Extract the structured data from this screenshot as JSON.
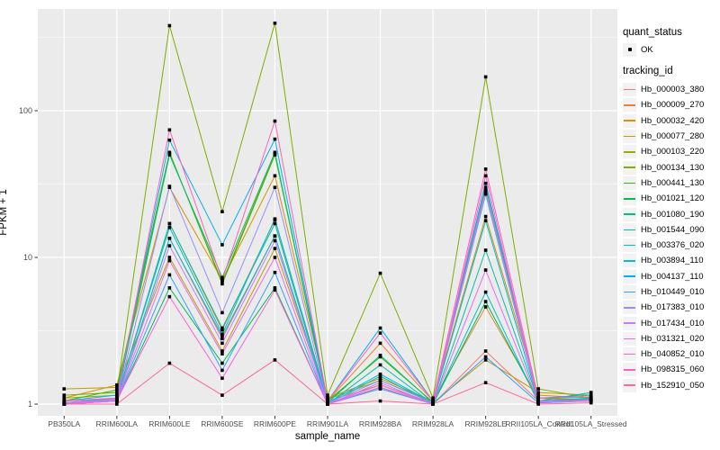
{
  "figure": {
    "background": "#FFFFFF",
    "panel_background": "#EBEBEB",
    "grid_color": "#FFFFFF",
    "axis_text_color": "#4D4D4D",
    "tick_mark_color": "#333333",
    "point_color": "#000000"
  },
  "axes": {
    "x_title": "sample_name",
    "y_title": "FPKM + 1",
    "y_tick_labels": [
      "1",
      "10",
      "100"
    ]
  },
  "legend": {
    "quant_title": "quant_status",
    "quant_items": [
      {
        "label": "OK"
      }
    ],
    "tracking_title": "tracking_id"
  },
  "chart_data": {
    "type": "line",
    "title": "",
    "xlabel": "sample_name",
    "ylabel": "FPKM + 1",
    "y_scale": "log10",
    "y_ticks": [
      1,
      10,
      100
    ],
    "y_minor_ticks": [
      3.162,
      31.62,
      316.2
    ],
    "ylim_log10": [
      -0.08,
      2.69
    ],
    "grid": true,
    "legend_position": "right",
    "point_shape": "filled-square",
    "categories": [
      "PB350LA",
      "RRIM600LA",
      "RRIM600LE",
      "RRIM600SE",
      "RRIM600PE",
      "RRIM901LA",
      "RRIM928BA",
      "RRIM928LA",
      "RRIM928LE",
      "RRII105LA_Control",
      "RRII105LA_Stressed"
    ],
    "series": [
      {
        "name": "Hb_000003_380",
        "color": "#F8766D",
        "values": [
          1.0,
          1.05,
          13.5,
          2.8,
          14.0,
          1.0,
          1.3,
          1.0,
          2.3,
          1.05,
          1.08
        ]
      },
      {
        "name": "Hb_000009_270",
        "color": "#EA8331",
        "values": [
          1.05,
          1.1,
          17.0,
          3.2,
          18.0,
          1.05,
          2.6,
          1.05,
          4.6,
          1.1,
          1.05
        ]
      },
      {
        "name": "Hb_000032_420",
        "color": "#D89000",
        "values": [
          1.1,
          1.35,
          30.0,
          7.0,
          36.0,
          1.1,
          1.5,
          1.05,
          19.0,
          1.15,
          1.1
        ]
      },
      {
        "name": "Hb_000077_280",
        "color": "#C09B00",
        "values": [
          1.27,
          1.3,
          10.0,
          2.3,
          11.5,
          1.05,
          1.35,
          1.02,
          2.0,
          1.2,
          1.15
        ]
      },
      {
        "name": "Hb_000103_220",
        "color": "#A3A500",
        "values": [
          1.1,
          1.15,
          51.0,
          6.8,
          51.0,
          1.08,
          1.45,
          1.04,
          28.0,
          1.1,
          1.08
        ]
      },
      {
        "name": "Hb_000134_130",
        "color": "#7CAE00",
        "values": [
          1.15,
          1.2,
          380.0,
          20.5,
          395.0,
          1.15,
          7.8,
          1.1,
          170.0,
          1.27,
          1.1
        ]
      },
      {
        "name": "Hb_000441_130",
        "color": "#39B600",
        "values": [
          1.05,
          1.25,
          52.0,
          6.6,
          50.0,
          1.05,
          2.1,
          1.03,
          30.0,
          1.1,
          1.12
        ]
      },
      {
        "name": "Hb_001021_120",
        "color": "#00BB4E",
        "values": [
          1.0,
          1.05,
          6.2,
          1.9,
          6.2,
          1.0,
          1.3,
          1.0,
          5.0,
          1.05,
          1.05
        ]
      },
      {
        "name": "Hb_001080_190",
        "color": "#00BF7D",
        "values": [
          1.02,
          1.1,
          50.0,
          7.3,
          52.0,
          1.02,
          2.15,
          1.02,
          27.0,
          1.05,
          1.2
        ]
      },
      {
        "name": "Hb_001544_090",
        "color": "#00C1A3",
        "values": [
          1.0,
          1.08,
          17.0,
          3.3,
          17.0,
          1.0,
          1.85,
          1.0,
          11.2,
          1.05,
          1.08
        ]
      },
      {
        "name": "Hb_003376_020",
        "color": "#00BFC4",
        "values": [
          1.0,
          1.05,
          13.5,
          2.9,
          14.0,
          1.0,
          1.55,
          1.0,
          5.8,
          1.02,
          1.05
        ]
      },
      {
        "name": "Hb_003894_110",
        "color": "#00BBDA",
        "values": [
          1.02,
          1.1,
          16.0,
          3.0,
          18.3,
          1.02,
          1.6,
          1.02,
          17.8,
          1.05,
          1.1
        ]
      },
      {
        "name": "Hb_004137_110",
        "color": "#00B0F6",
        "values": [
          1.05,
          1.15,
          63.0,
          12.2,
          64.0,
          1.05,
          3.3,
          1.05,
          32.0,
          1.1,
          1.15
        ]
      },
      {
        "name": "Hb_010449_010",
        "color": "#35A2FF",
        "values": [
          1.0,
          1.05,
          7.6,
          1.7,
          7.9,
          1.0,
          1.27,
          1.0,
          2.1,
          1.02,
          1.05
        ]
      },
      {
        "name": "Hb_017383_010",
        "color": "#9590FF",
        "values": [
          1.02,
          1.08,
          30.5,
          4.2,
          30.0,
          1.02,
          1.45,
          1.02,
          27.5,
          1.05,
          1.06
        ]
      },
      {
        "name": "Hb_017434_010",
        "color": "#C77CFF",
        "values": [
          1.0,
          1.06,
          12.0,
          2.6,
          13.0,
          1.0,
          1.4,
          1.0,
          29.0,
          1.04,
          1.05
        ]
      },
      {
        "name": "Hb_031321_020",
        "color": "#E76BF3",
        "values": [
          1.0,
          1.05,
          9.5,
          2.2,
          10.0,
          1.0,
          1.35,
          1.0,
          8.2,
          1.03,
          1.05
        ]
      },
      {
        "name": "Hb_040852_010",
        "color": "#FA62DB",
        "values": [
          1.02,
          1.06,
          5.4,
          1.5,
          6.0,
          1.0,
          1.3,
          1.0,
          36.0,
          1.04,
          1.06
        ]
      },
      {
        "name": "Hb_098315_060",
        "color": "#FF62BC",
        "values": [
          1.05,
          1.1,
          74.0,
          7.0,
          85.0,
          1.05,
          3.05,
          1.05,
          40.0,
          1.1,
          1.12
        ]
      },
      {
        "name": "Hb_152910_050",
        "color": "#FF6A98",
        "values": [
          1.0,
          1.0,
          1.9,
          1.15,
          2.0,
          1.0,
          1.05,
          1.0,
          1.4,
          1.0,
          1.02
        ]
      }
    ]
  }
}
